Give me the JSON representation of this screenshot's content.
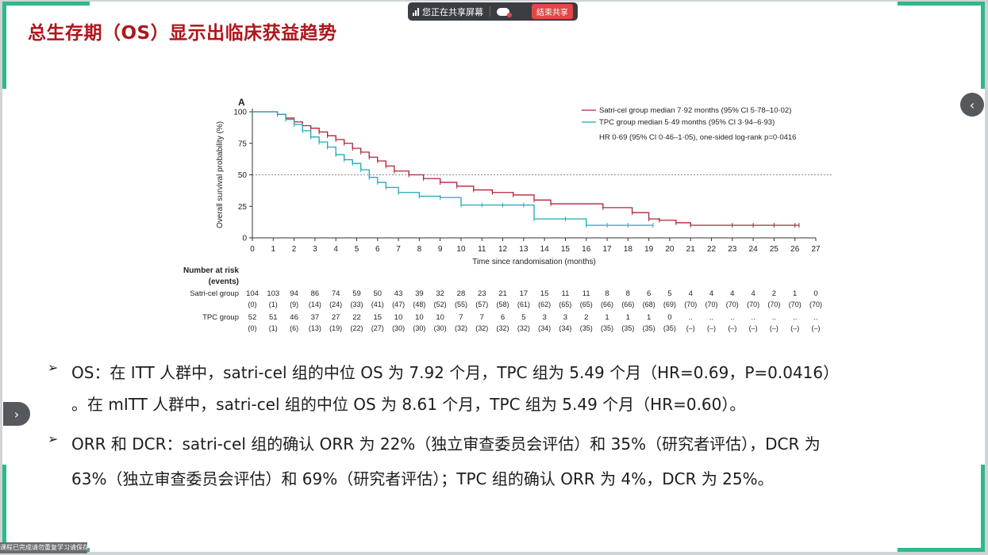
{
  "title": "总生存期（OS）显示出临床获益趋势",
  "share_bar": {
    "status": "您正在共享屏幕",
    "stop_label": "结束共享"
  },
  "nav": {
    "prev_icon": "‹",
    "next_icon": "›"
  },
  "bullets": [
    {
      "line1": "OS：在 ITT 人群中，satri-cel 组的中位 OS 为 7.92 个月，TPC 组为 5.49 个月（HR=0.69，P=0.0416）",
      "line2": "。在 mITT 人群中，satri-cel 组的中位 OS 为 8.61 个月，TPC 组为 5.49 个月（HR=0.60）。"
    },
    {
      "line1": "ORR 和 DCR：satri-cel 组的确认 ORR 为 22%（独立审查委员会评估）和 35%（研究者评估），DCR 为",
      "line2": "63%（独立审查委员会评估）和 69%（研究者评估）；TPC 组的确认 ORR 为 4%，DCR 为 25%。"
    }
  ],
  "bottom_strip": "课程已完成请勿重复学习请保存",
  "colors": {
    "title": "#b0151b",
    "accent": "#2fb98a",
    "satri": "#b0243b",
    "tpc": "#1fa8b8"
  },
  "chart_data": {
    "type": "line",
    "panel_label": "A",
    "xlabel": "Time since randomisation (months)",
    "ylabel": "Overall survival probability (%)",
    "xlim": [
      0,
      27
    ],
    "ylim": [
      0,
      100
    ],
    "x_ticks": [
      0,
      1,
      2,
      3,
      4,
      5,
      6,
      7,
      8,
      9,
      10,
      11,
      12,
      13,
      14,
      15,
      16,
      17,
      18,
      19,
      20,
      21,
      22,
      23,
      24,
      25,
      26,
      27
    ],
    "y_ticks": [
      0,
      25,
      50,
      75,
      100
    ],
    "reference_line": 50,
    "legend": {
      "placement": "top-right",
      "entries": [
        "Satri-cel group median 7·92 months (95% CI 5·78–10·02)",
        "TPC group median 5·49 months (95% CI 3·94–6·93)"
      ],
      "note": "HR 0·69 (95% CI 0·46–1·05), one-sided log-rank p=0·0416"
    },
    "series": [
      {
        "name": "Satri-cel group",
        "color": "#b0243b",
        "x": [
          0,
          1.2,
          1.6,
          2,
          2.4,
          2.8,
          3.2,
          3.6,
          4,
          4.4,
          4.8,
          5.2,
          5.6,
          6,
          6.4,
          6.8,
          7.5,
          8.2,
          9,
          9.8,
          10.6,
          11.5,
          12.5,
          13.5,
          14.3,
          16.8,
          18.2,
          19,
          19.5,
          20.3,
          21,
          23,
          24,
          25,
          26,
          26.2
        ],
        "y": [
          100,
          98,
          95,
          92,
          89,
          87,
          84,
          81,
          78,
          75,
          71,
          68,
          64,
          61,
          57,
          53,
          50,
          47,
          44,
          41,
          38,
          36,
          34,
          30,
          27,
          24,
          20,
          15,
          14,
          12,
          10,
          10,
          10,
          10,
          10,
          10
        ]
      },
      {
        "name": "TPC group",
        "color": "#1fa8b8",
        "x": [
          0,
          1.2,
          1.6,
          2,
          2.4,
          2.8,
          3.2,
          3.6,
          4,
          4.4,
          4.8,
          5.2,
          5.6,
          6,
          6.4,
          7,
          8,
          9,
          10,
          11,
          12,
          13,
          13.5,
          15,
          16,
          17,
          18,
          19.2
        ],
        "y": [
          100,
          98,
          94,
          90,
          85,
          80,
          76,
          72,
          66,
          62,
          59,
          54,
          48,
          44,
          40,
          36,
          33,
          32,
          26,
          26,
          26,
          26,
          15,
          15,
          10,
          10,
          10,
          10
        ]
      }
    ],
    "risk_table": {
      "header": [
        "Number at risk",
        "(events)"
      ],
      "rows": [
        {
          "label": "Satri-cel group",
          "at_risk": [
            "104",
            "103",
            "94",
            "86",
            "74",
            "59",
            "50",
            "43",
            "39",
            "32",
            "28",
            "23",
            "21",
            "17",
            "15",
            "11",
            "11",
            "8",
            "8",
            "6",
            "5",
            "4",
            "4",
            "4",
            "4",
            "2",
            "1",
            "0"
          ],
          "events": [
            "(0)",
            "(1)",
            "(9)",
            "(14)",
            "(24)",
            "(33)",
            "(41)",
            "(47)",
            "(48)",
            "(52)",
            "(55)",
            "(57)",
            "(58)",
            "(61)",
            "(62)",
            "(65)",
            "(65)",
            "(66)",
            "(66)",
            "(68)",
            "(69)",
            "(70)",
            "(70)",
            "(70)",
            "(70)",
            "(70)",
            "(70)",
            "(70)"
          ]
        },
        {
          "label": "TPC group",
          "at_risk": [
            "52",
            "51",
            "46",
            "37",
            "27",
            "22",
            "15",
            "10",
            "10",
            "10",
            "7",
            "7",
            "6",
            "5",
            "3",
            "3",
            "2",
            "1",
            "1",
            "1",
            "0",
            "..",
            "..",
            "..",
            "..",
            "..",
            "..",
            ".."
          ],
          "events": [
            "(0)",
            "(1)",
            "(6)",
            "(13)",
            "(19)",
            "(22)",
            "(27)",
            "(30)",
            "(30)",
            "(30)",
            "(32)",
            "(32)",
            "(32)",
            "(32)",
            "(34)",
            "(34)",
            "(35)",
            "(35)",
            "(35)",
            "(35)",
            "(35)",
            "(–)",
            "(–)",
            "(–)",
            "(–)",
            "(–)",
            "(–)",
            "(–)"
          ]
        }
      ]
    }
  }
}
